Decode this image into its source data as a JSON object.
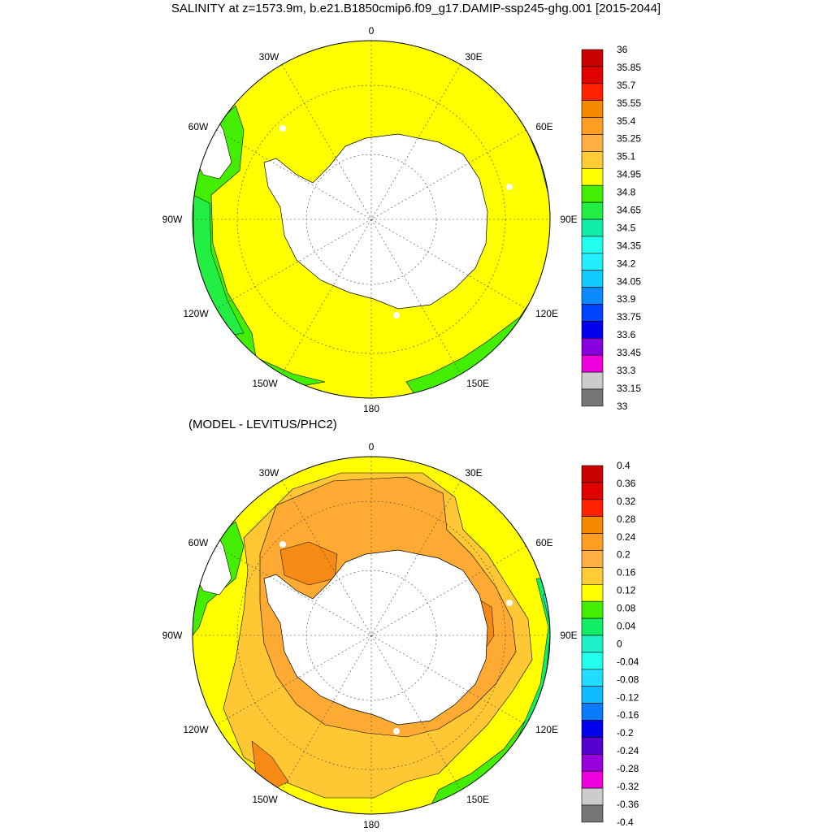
{
  "title": "SALINITY at z=1573.9m, b.e21.B1850cmip6.f09_g17.DAMIP-ssp245-ghg.001 [2015-2044]",
  "subtitle": "(MODEL - LEVITUS/PHC2)",
  "lon_labels": [
    "0",
    "30E",
    "60E",
    "90E",
    "120E",
    "150E",
    "180",
    "150W",
    "120W",
    "90W",
    "60W",
    "30W"
  ],
  "colors": {
    "land": "#ffffff",
    "yellow": "#ffff00",
    "light_orange": "#ffc733",
    "orange": "#ffab33",
    "dark_orange": "#f58a14",
    "green": "#44ee00",
    "bright_green": "#11ee66",
    "aqua": "#1ef0c8",
    "cyan": "#22ffee"
  },
  "colorbar_top": {
    "labels": [
      "36",
      "35.85",
      "35.7",
      "35.55",
      "35.4",
      "35.25",
      "35.1",
      "34.95",
      "34.8",
      "34.65",
      "34.5",
      "34.35",
      "34.2",
      "34.05",
      "33.9",
      "33.75",
      "33.6",
      "33.45",
      "33.3",
      "33.15",
      "33"
    ],
    "colors": [
      "#c80000",
      "#e00000",
      "#ff2000",
      "#f58a00",
      "#ff9e22",
      "#ffb040",
      "#ffcc33",
      "#ffff00",
      "#44ee00",
      "#22ee44",
      "#11eeaa",
      "#22ffee",
      "#22eeff",
      "#11ccff",
      "#0a8aff",
      "#0044ff",
      "#0000ee",
      "#8800dd",
      "#ee00dd",
      "#cccccc",
      "#777777"
    ]
  },
  "colorbar_bottom": {
    "labels": [
      "0.4",
      "0.36",
      "0.32",
      "0.28",
      "0.24",
      "0.2",
      "0.16",
      "0.12",
      "0.08",
      "0.04",
      "0",
      "-0.04",
      "-0.08",
      "-0.12",
      "-0.16",
      "-0.2",
      "-0.24",
      "-0.28",
      "-0.32",
      "-0.36",
      "-0.4"
    ],
    "colors": [
      "#c80000",
      "#e00000",
      "#ff2000",
      "#f58a00",
      "#ff9e22",
      "#ffb040",
      "#ffcc33",
      "#ffff00",
      "#44ee00",
      "#11ee66",
      "#1ef0c8",
      "#22ffee",
      "#22ddff",
      "#11bbff",
      "#0a7aff",
      "#0000ee",
      "#5500cc",
      "#9900dd",
      "#ee00dd",
      "#cccccc",
      "#777777"
    ]
  }
}
